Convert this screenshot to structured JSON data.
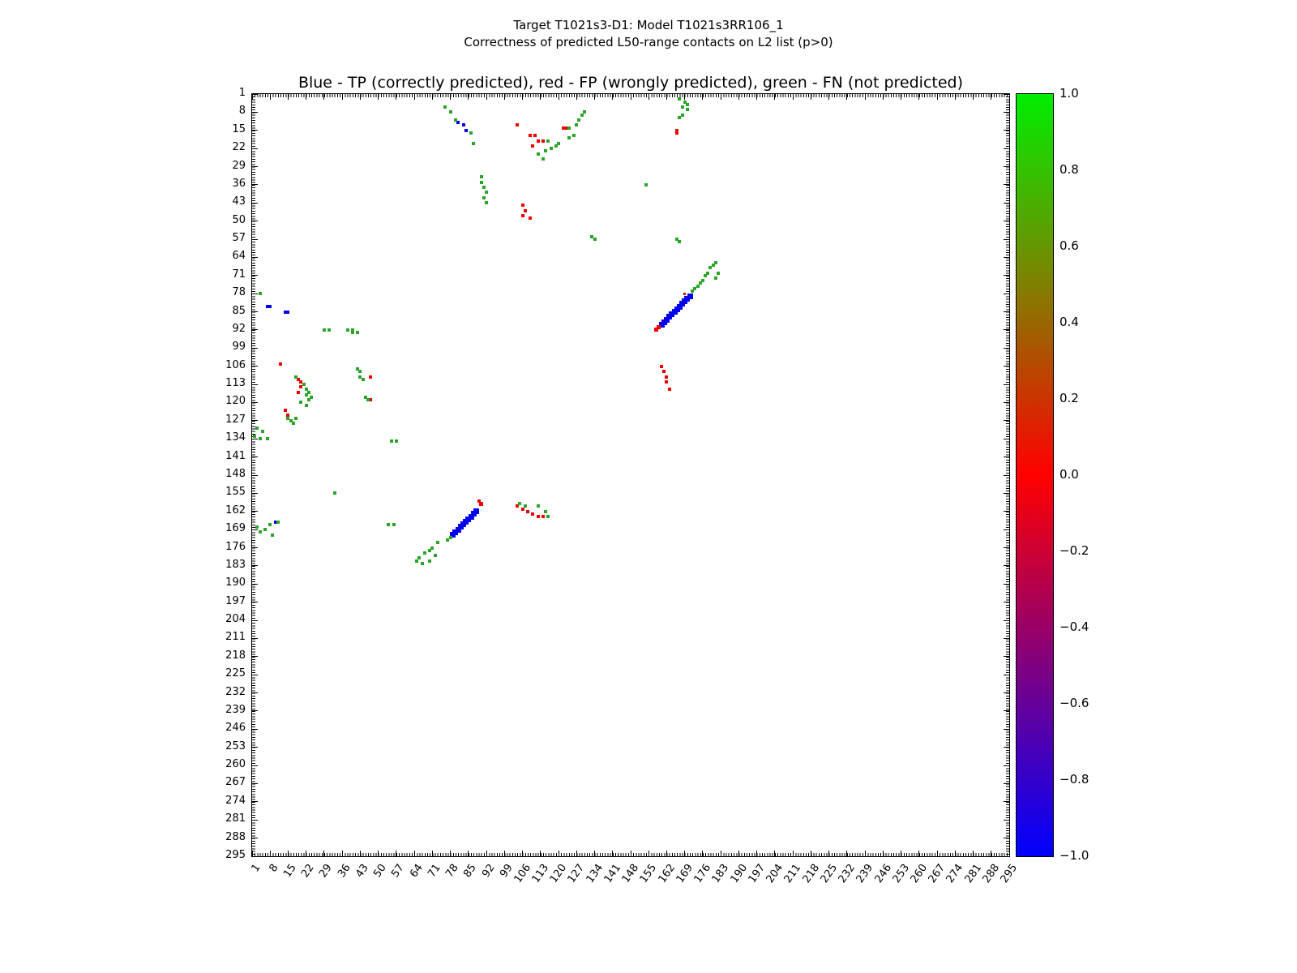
{
  "figure": {
    "title_line1": "Target T1021s3-D1: Model T1021s3RR106_1",
    "title_line2": "Correctness of predicted L50-range contacts on L2 list (p>0)",
    "axes_title": "Blue - TP (correctly predicted), red - FP (wrongly predicted), green - FN (not predicted)"
  },
  "chart_data": {
    "type": "scatter",
    "title": "Blue - TP (correctly predicted), red - FP (wrongly predicted), green - FN (not predicted)",
    "xlabel": "",
    "ylabel": "",
    "xlim": [
      1,
      295
    ],
    "ylim": [
      1,
      295
    ],
    "y_axis_inverted": true,
    "grid": false,
    "axis_tick_labels": [
      1,
      8,
      15,
      22,
      29,
      36,
      43,
      50,
      57,
      64,
      71,
      78,
      85,
      92,
      99,
      106,
      113,
      120,
      127,
      134,
      141,
      148,
      155,
      162,
      169,
      176,
      183,
      190,
      197,
      204,
      211,
      218,
      225,
      232,
      239,
      246,
      253,
      260,
      267,
      274,
      281,
      288,
      295
    ],
    "series": [
      {
        "key": "tp",
        "name": "TP (correctly predicted)",
        "color": "#0000ee",
        "default_size": 4,
        "points": [
          [
            160,
            90,
            7
          ],
          [
            161,
            89,
            7
          ],
          [
            162,
            88,
            7
          ],
          [
            163,
            87,
            7
          ],
          [
            164,
            86,
            7
          ],
          [
            165,
            85,
            7
          ],
          [
            166,
            84,
            7
          ],
          [
            167,
            83,
            7
          ],
          [
            168,
            82,
            7
          ],
          [
            169,
            81,
            7
          ],
          [
            170,
            80,
            7
          ],
          [
            171,
            79,
            7
          ],
          [
            79,
            171,
            7
          ],
          [
            80,
            170,
            7
          ],
          [
            81,
            169,
            7
          ],
          [
            82,
            168,
            7
          ],
          [
            83,
            167,
            7
          ],
          [
            84,
            166,
            7
          ],
          [
            85,
            165,
            7
          ],
          [
            86,
            164,
            7
          ],
          [
            87,
            163,
            7
          ],
          [
            88,
            162,
            7
          ],
          [
            81,
            12,
            4
          ],
          [
            83,
            13,
            4
          ],
          [
            84,
            15,
            4
          ],
          [
            7,
            83,
            4
          ],
          [
            8,
            83,
            4
          ],
          [
            14,
            85,
            4
          ],
          [
            15,
            85,
            4
          ],
          [
            10,
            166,
            4
          ]
        ]
      },
      {
        "key": "fp",
        "name": "FP (wrongly predicted)",
        "color": "#ee0000",
        "default_size": 4,
        "points": [
          [
            158,
            92,
            5
          ],
          [
            159,
            91,
            5
          ],
          [
            90,
            159,
            5
          ],
          [
            89,
            158,
            4
          ],
          [
            169,
            78,
            3
          ],
          [
            104,
            13
          ],
          [
            109,
            17
          ],
          [
            111,
            17
          ],
          [
            112,
            19
          ],
          [
            114,
            19
          ],
          [
            110,
            21
          ],
          [
            122,
            14
          ],
          [
            123,
            14
          ],
          [
            166,
            15
          ],
          [
            166,
            16
          ],
          [
            106,
            44
          ],
          [
            107,
            46
          ],
          [
            106,
            48
          ],
          [
            109,
            49
          ],
          [
            12,
            105
          ],
          [
            19,
            111
          ],
          [
            20,
            112
          ],
          [
            20,
            114
          ],
          [
            19,
            116
          ],
          [
            14,
            123
          ],
          [
            15,
            125
          ],
          [
            47,
            110
          ],
          [
            47,
            119
          ],
          [
            160,
            106
          ],
          [
            161,
            108
          ],
          [
            162,
            110
          ],
          [
            162,
            112
          ],
          [
            163,
            115
          ],
          [
            104,
            160
          ],
          [
            106,
            161
          ],
          [
            108,
            162
          ],
          [
            110,
            163
          ],
          [
            112,
            164
          ],
          [
            114,
            164
          ]
        ]
      },
      {
        "key": "fn",
        "name": "FN (not predicted)",
        "color": "#2aa52a",
        "default_size": 4,
        "points": [
          [
            76,
            6
          ],
          [
            78,
            8
          ],
          [
            80,
            11
          ],
          [
            86,
            16
          ],
          [
            87,
            20
          ],
          [
            90,
            33
          ],
          [
            90,
            35
          ],
          [
            91,
            37
          ],
          [
            92,
            39
          ],
          [
            91,
            41
          ],
          [
            92,
            43
          ],
          [
            112,
            24
          ],
          [
            114,
            26
          ],
          [
            115,
            23
          ],
          [
            117,
            22
          ],
          [
            119,
            21
          ],
          [
            120,
            20
          ],
          [
            116,
            19
          ],
          [
            124,
            18
          ],
          [
            126,
            17
          ],
          [
            124,
            14
          ],
          [
            127,
            13
          ],
          [
            128,
            11
          ],
          [
            129,
            9
          ],
          [
            130,
            8
          ],
          [
            167,
            3
          ],
          [
            169,
            4
          ],
          [
            170,
            5
          ],
          [
            168,
            6
          ],
          [
            170,
            7
          ],
          [
            168,
            9
          ],
          [
            167,
            10
          ],
          [
            154,
            36
          ],
          [
            133,
            56
          ],
          [
            134,
            57
          ],
          [
            166,
            57
          ],
          [
            167,
            58
          ],
          [
            174,
            75
          ],
          [
            175,
            74
          ],
          [
            176,
            73
          ],
          [
            177,
            71
          ],
          [
            178,
            70
          ],
          [
            179,
            68
          ],
          [
            180,
            67
          ],
          [
            181,
            66
          ],
          [
            182,
            70
          ],
          [
            181,
            72
          ],
          [
            172,
            77
          ],
          [
            173,
            76
          ],
          [
            4,
            78
          ],
          [
            29,
            92
          ],
          [
            31,
            92
          ],
          [
            38,
            92
          ],
          [
            40,
            92
          ],
          [
            40,
            93
          ],
          [
            42,
            93
          ],
          [
            42,
            107
          ],
          [
            43,
            108
          ],
          [
            43,
            110
          ],
          [
            44,
            111
          ],
          [
            45,
            118
          ],
          [
            46,
            119
          ],
          [
            18,
            110
          ],
          [
            21,
            113
          ],
          [
            22,
            115
          ],
          [
            23,
            116
          ],
          [
            22,
            117
          ],
          [
            24,
            118
          ],
          [
            23,
            119
          ],
          [
            20,
            120
          ],
          [
            22,
            121
          ],
          [
            15,
            126
          ],
          [
            16,
            127
          ],
          [
            17,
            128
          ],
          [
            18,
            126
          ],
          [
            3,
            130
          ],
          [
            5,
            131
          ],
          [
            2,
            133
          ],
          [
            4,
            134
          ],
          [
            7,
            134
          ],
          [
            55,
            135
          ],
          [
            57,
            135
          ],
          [
            33,
            155
          ],
          [
            54,
            167
          ],
          [
            56,
            167
          ],
          [
            3,
            168
          ],
          [
            4,
            170
          ],
          [
            6,
            169
          ],
          [
            8,
            167
          ],
          [
            9,
            171
          ],
          [
            11,
            166
          ],
          [
            78,
            172
          ],
          [
            77,
            173
          ],
          [
            73,
            174
          ],
          [
            71,
            176
          ],
          [
            70,
            177
          ],
          [
            68,
            178
          ],
          [
            66,
            180
          ],
          [
            65,
            181
          ],
          [
            67,
            182
          ],
          [
            70,
            181
          ],
          [
            72,
            179
          ],
          [
            105,
            159
          ],
          [
            107,
            160
          ],
          [
            112,
            160
          ],
          [
            115,
            162
          ],
          [
            116,
            164
          ]
        ]
      }
    ],
    "colorbar": {
      "min": -1.0,
      "max": 1.0,
      "ticks": [
        "1.0",
        "0.8",
        "0.6",
        "0.4",
        "0.2",
        "0.0",
        "−0.2",
        "−0.4",
        "−0.6",
        "−0.8",
        "−1.0"
      ],
      "gradient_stops": [
        {
          "pos": 0.0,
          "color": "#00ee00"
        },
        {
          "pos": 0.25,
          "color": "#808000"
        },
        {
          "pos": 0.5,
          "color": "#ff0000"
        },
        {
          "pos": 0.75,
          "color": "#800080"
        },
        {
          "pos": 1.0,
          "color": "#0000ff"
        }
      ]
    }
  }
}
